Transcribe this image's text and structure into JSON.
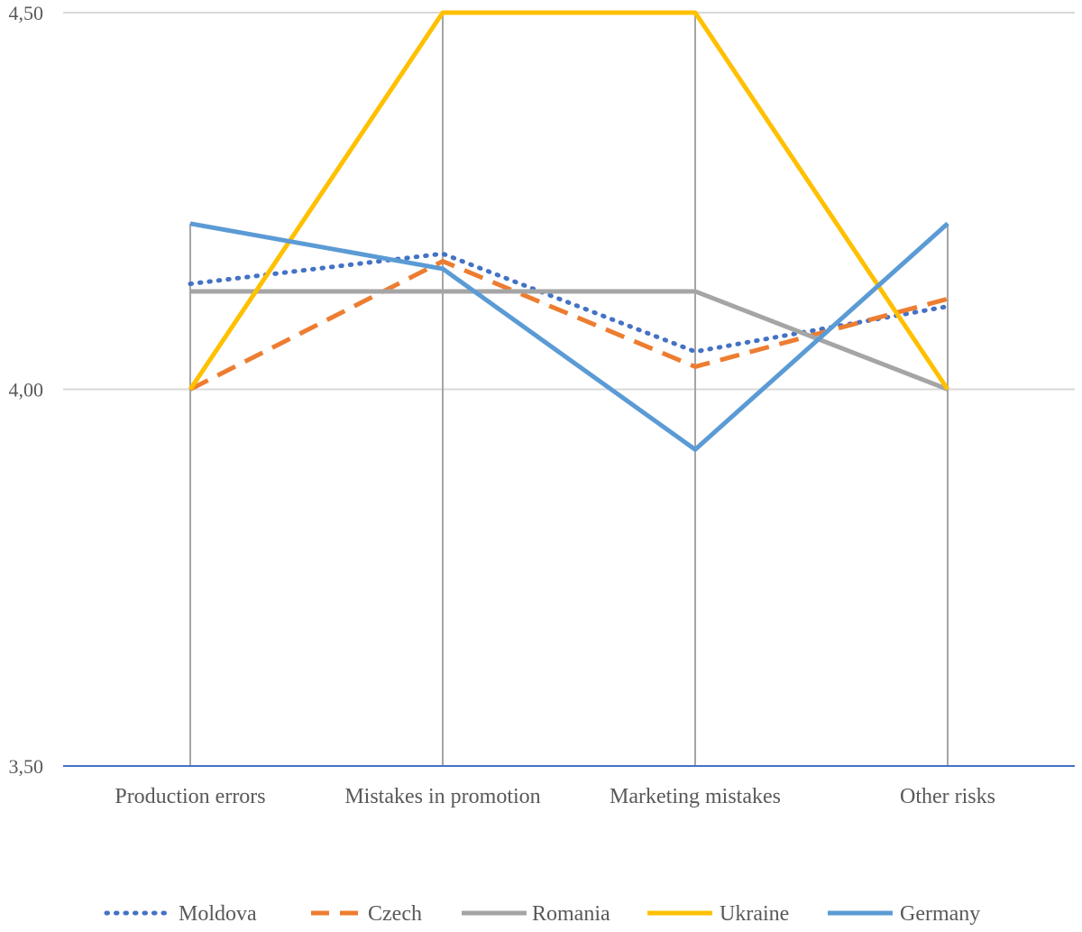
{
  "chart_data": {
    "type": "line",
    "categories": [
      "Production errors",
      "Mistakes in promotion",
      "Marketing mistakes",
      "Other risks"
    ],
    "yticks": [
      "3,50",
      "4,00",
      "4,50"
    ],
    "ytick_values": [
      3.5,
      4.0,
      4.5
    ],
    "ylim": [
      3.5,
      4.5
    ],
    "grid": true,
    "legend_position": "bottom",
    "series": [
      {
        "name": "Moldova",
        "values": [
          4.14,
          4.18,
          4.05,
          4.11
        ],
        "color": "#4472C4",
        "style": "dotted"
      },
      {
        "name": "Czech",
        "values": [
          4.0,
          4.17,
          4.03,
          4.12
        ],
        "color": "#ED7D31",
        "style": "dashed"
      },
      {
        "name": "Romania",
        "values": [
          4.13,
          4.13,
          4.13,
          4.0
        ],
        "color": "#A5A5A5",
        "style": "solid"
      },
      {
        "name": "Ukraine",
        "values": [
          4.0,
          4.5,
          4.5,
          4.0
        ],
        "color": "#FFC000",
        "style": "solid"
      },
      {
        "name": "Germany",
        "values": [
          4.22,
          4.16,
          3.92,
          4.22
        ],
        "color": "#5B9BD5",
        "style": "solid"
      }
    ]
  }
}
